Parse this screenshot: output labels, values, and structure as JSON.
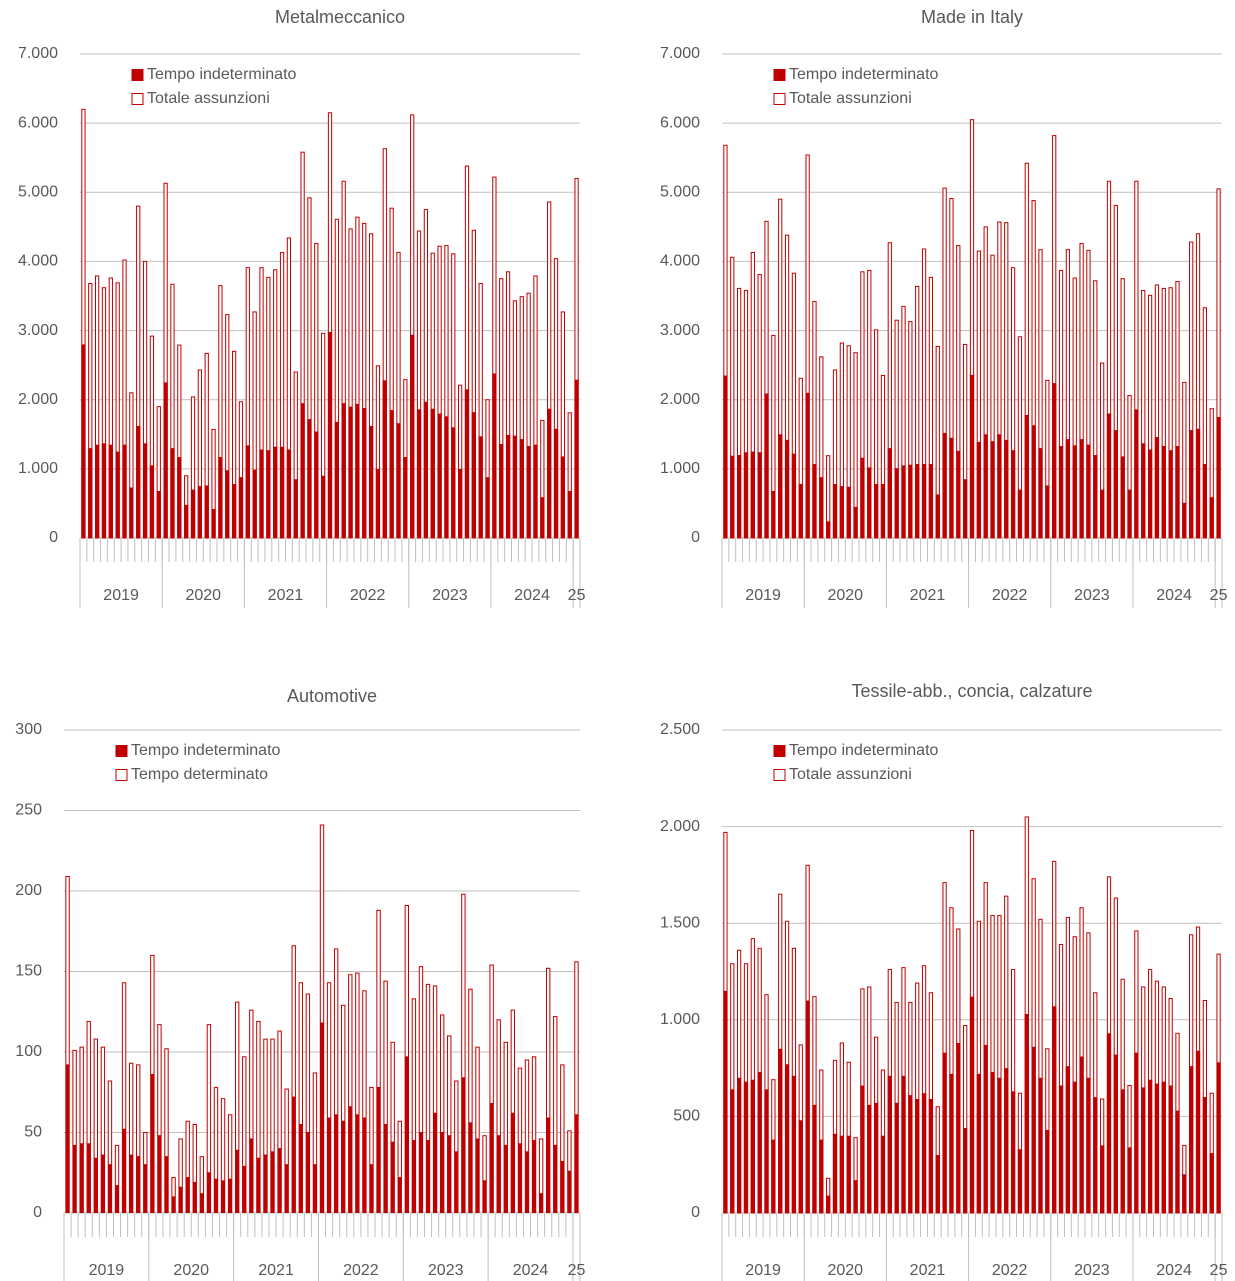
{
  "chart_data": [
    {
      "type": "bar",
      "title": "Metalmeccanico",
      "stacked": false,
      "grid": true,
      "legend": "top-left",
      "categories": [
        null,
        null,
        null,
        null,
        null,
        null,
        null,
        null,
        null,
        null,
        null,
        null,
        null,
        null,
        null,
        null,
        null,
        null,
        null,
        null,
        null,
        null,
        null,
        null,
        null,
        null,
        null,
        null,
        null,
        null,
        null,
        null,
        null,
        null,
        null,
        null,
        null,
        null,
        null,
        null,
        null,
        null,
        null,
        null,
        null,
        null,
        null,
        null,
        null,
        null,
        null,
        null,
        null,
        null,
        null,
        null,
        null,
        null,
        null,
        null,
        null,
        null,
        null,
        null,
        null,
        null,
        null,
        null,
        null,
        null,
        null,
        null,
        null
      ],
      "groups": [
        {
          "label": "2019",
          "span": 12
        },
        {
          "label": "2020",
          "span": 12
        },
        {
          "label": "2021",
          "span": 12
        },
        {
          "label": "2022",
          "span": 12
        },
        {
          "label": "2023",
          "span": 12
        },
        {
          "label": "2024",
          "span": 12
        },
        {
          "label": "25",
          "span": 1
        }
      ],
      "ylim": [
        0,
        7000
      ],
      "yticks": [
        0,
        {
          "value": 1000,
          "label": "1.000"
        },
        {
          "value": 2000,
          "label": "2.000"
        },
        {
          "value": 3000,
          "label": "3.000"
        },
        {
          "value": 4000,
          "label": "4.000"
        },
        {
          "value": 5000,
          "label": "5.000"
        },
        {
          "value": 6000,
          "label": "6.000"
        },
        {
          "value": 7000,
          "label": "7.000"
        }
      ],
      "series": [
        {
          "name": "Tempo indeterminato",
          "color": "#c00000",
          "style": "solid",
          "values": [
            2800,
            1300,
            1350,
            1370,
            1350,
            1250,
            1350,
            730,
            1620,
            1370,
            1050,
            680,
            2250,
            1300,
            1170,
            480,
            700,
            750,
            760,
            420,
            1170,
            980,
            780,
            880,
            1340,
            990,
            1280,
            1270,
            1320,
            1320,
            1280,
            850,
            1950,
            1720,
            1540,
            900,
            2980,
            1680,
            1950,
            1900,
            1940,
            1880,
            1620,
            1000,
            2280,
            1850,
            1660,
            1170,
            2940,
            1860,
            1970,
            1870,
            1800,
            1760,
            1600,
            1000,
            2150,
            1820,
            1470,
            880,
            2380,
            1360,
            1490,
            1480,
            1430,
            1330,
            1350,
            590,
            1870,
            1580,
            1180,
            680,
            2290
          ]
        },
        {
          "name": "Totale assunzioni",
          "color": "#c00000",
          "style": "outline",
          "values": [
            6200,
            3680,
            3790,
            3620,
            3760,
            3690,
            4020,
            2100,
            4800,
            4000,
            2920,
            1900,
            5130,
            3670,
            2790,
            900,
            2040,
            2430,
            2670,
            1570,
            3650,
            3230,
            2700,
            1970,
            3910,
            3270,
            3910,
            3770,
            3880,
            4130,
            4340,
            2400,
            5580,
            4920,
            4260,
            2960,
            6150,
            4610,
            5160,
            4470,
            4640,
            4550,
            4400,
            2490,
            5630,
            4770,
            4130,
            2290,
            6120,
            4440,
            4750,
            4120,
            4220,
            4230,
            4110,
            2210,
            5380,
            4450,
            3680,
            2000,
            5220,
            3750,
            3850,
            3430,
            3490,
            3540,
            3790,
            1700,
            4860,
            4040,
            3270,
            1810,
            5200
          ]
        }
      ]
    },
    {
      "type": "bar",
      "title": "Made in Italy",
      "stacked": false,
      "grid": true,
      "legend": "top-left",
      "categories": [
        null,
        null,
        null,
        null,
        null,
        null,
        null,
        null,
        null,
        null,
        null,
        null,
        null,
        null,
        null,
        null,
        null,
        null,
        null,
        null,
        null,
        null,
        null,
        null,
        null,
        null,
        null,
        null,
        null,
        null,
        null,
        null,
        null,
        null,
        null,
        null,
        null,
        null,
        null,
        null,
        null,
        null,
        null,
        null,
        null,
        null,
        null,
        null,
        null,
        null,
        null,
        null,
        null,
        null,
        null,
        null,
        null,
        null,
        null,
        null,
        null,
        null,
        null,
        null,
        null,
        null,
        null,
        null,
        null,
        null,
        null,
        null,
        null
      ],
      "groups": [
        {
          "label": "2019",
          "span": 12
        },
        {
          "label": "2020",
          "span": 12
        },
        {
          "label": "2021",
          "span": 12
        },
        {
          "label": "2022",
          "span": 12
        },
        {
          "label": "2023",
          "span": 12
        },
        {
          "label": "2024",
          "span": 12
        },
        {
          "label": "25",
          "span": 1
        }
      ],
      "ylim": [
        0,
        7000
      ],
      "yticks": [
        0,
        {
          "value": 1000,
          "label": "1.000"
        },
        {
          "value": 2000,
          "label": "2.000"
        },
        {
          "value": 3000,
          "label": "3.000"
        },
        {
          "value": 4000,
          "label": "4.000"
        },
        {
          "value": 5000,
          "label": "5.000"
        },
        {
          "value": 6000,
          "label": "6.000"
        },
        {
          "value": 7000,
          "label": "7.000"
        }
      ],
      "series": [
        {
          "name": "Tempo indeterminato",
          "color": "#c00000",
          "style": "solid",
          "values": [
            2350,
            1190,
            1200,
            1240,
            1250,
            1240,
            2090,
            680,
            1500,
            1420,
            1220,
            780,
            2100,
            1070,
            880,
            240,
            780,
            750,
            740,
            450,
            1160,
            1020,
            780,
            780,
            1300,
            1010,
            1050,
            1060,
            1070,
            1070,
            1070,
            630,
            1520,
            1450,
            1260,
            850,
            2360,
            1390,
            1500,
            1400,
            1500,
            1420,
            1270,
            700,
            1780,
            1630,
            1300,
            760,
            2240,
            1330,
            1430,
            1340,
            1430,
            1350,
            1200,
            700,
            1800,
            1560,
            1180,
            700,
            1860,
            1370,
            1280,
            1460,
            1330,
            1270,
            1330,
            510,
            1560,
            1580,
            1070,
            590,
            1750
          ]
        },
        {
          "name": "Totale assunzioni",
          "color": "#c00000",
          "style": "outline",
          "values": [
            5680,
            4060,
            3610,
            3580,
            4130,
            3810,
            4580,
            2930,
            4900,
            4380,
            3830,
            2310,
            5540,
            3420,
            2620,
            1190,
            2430,
            2820,
            2780,
            2680,
            3850,
            3870,
            3010,
            2350,
            4270,
            3150,
            3350,
            3130,
            3640,
            4180,
            3770,
            2770,
            5060,
            4910,
            4230,
            2800,
            6050,
            4150,
            4500,
            4090,
            4570,
            4560,
            3910,
            2910,
            5420,
            4880,
            4170,
            2280,
            5820,
            3870,
            4170,
            3760,
            4260,
            4160,
            3720,
            2530,
            5160,
            4810,
            3750,
            2060,
            5160,
            3580,
            3510,
            3660,
            3610,
            3620,
            3710,
            2250,
            4280,
            4400,
            3330,
            1870,
            5050
          ]
        }
      ]
    },
    {
      "type": "bar",
      "title": "Automotive",
      "stacked": true,
      "grid": true,
      "legend": "top-left",
      "categories": [
        null,
        null,
        null,
        null,
        null,
        null,
        null,
        null,
        null,
        null,
        null,
        null,
        null,
        null,
        null,
        null,
        null,
        null,
        null,
        null,
        null,
        null,
        null,
        null,
        null,
        null,
        null,
        null,
        null,
        null,
        null,
        null,
        null,
        null,
        null,
        null,
        null,
        null,
        null,
        null,
        null,
        null,
        null,
        null,
        null,
        null,
        null,
        null,
        null,
        null,
        null,
        null,
        null,
        null,
        null,
        null,
        null,
        null,
        null,
        null,
        null,
        null,
        null,
        null,
        null,
        null,
        null,
        null,
        null,
        null,
        null,
        null,
        null
      ],
      "groups": [
        {
          "label": "2019",
          "span": 12
        },
        {
          "label": "2020",
          "span": 12
        },
        {
          "label": "2021",
          "span": 12
        },
        {
          "label": "2022",
          "span": 12
        },
        {
          "label": "2023",
          "span": 12
        },
        {
          "label": "2024",
          "span": 12
        },
        {
          "label": "25",
          "span": 1
        }
      ],
      "ylim": [
        0,
        300
      ],
      "yticks": [
        0,
        50,
        100,
        150,
        200,
        250,
        300
      ],
      "series": [
        {
          "name": "Tempo indeterminato",
          "color": "#c00000",
          "style": "solid",
          "values": [
            92,
            42,
            43,
            43,
            34,
            36,
            30,
            17,
            52,
            36,
            35,
            30,
            86,
            48,
            35,
            10,
            16,
            22,
            19,
            12,
            25,
            21,
            20,
            21,
            39,
            29,
            46,
            34,
            36,
            38,
            40,
            30,
            72,
            55,
            50,
            30,
            118,
            59,
            61,
            57,
            66,
            61,
            59,
            30,
            78,
            55,
            44,
            22,
            97,
            45,
            50,
            45,
            62,
            50,
            48,
            38,
            84,
            56,
            46,
            20,
            68,
            48,
            42,
            62,
            43,
            38,
            45,
            12,
            59,
            42,
            32,
            26,
            61
          ]
        },
        {
          "name": "Tempo determinato",
          "color": "#c00000",
          "style": "outline",
          "values": [
            117,
            59,
            60,
            76,
            74,
            67,
            52,
            25,
            91,
            57,
            57,
            20,
            74,
            69,
            67,
            12,
            30,
            35,
            36,
            23,
            92,
            57,
            51,
            40,
            92,
            68,
            80,
            85,
            72,
            70,
            73,
            47,
            94,
            88,
            86,
            57,
            123,
            84,
            103,
            72,
            82,
            88,
            79,
            48,
            110,
            89,
            62,
            35,
            94,
            88,
            103,
            97,
            79,
            73,
            62,
            44,
            114,
            83,
            57,
            28,
            86,
            72,
            64,
            64,
            47,
            57,
            52,
            34,
            93,
            80,
            60,
            25,
            95
          ]
        }
      ]
    },
    {
      "type": "bar",
      "title": "Tessile-abb., concia, calzature",
      "stacked": false,
      "grid": true,
      "legend": "top-left",
      "categories": [
        null,
        null,
        null,
        null,
        null,
        null,
        null,
        null,
        null,
        null,
        null,
        null,
        null,
        null,
        null,
        null,
        null,
        null,
        null,
        null,
        null,
        null,
        null,
        null,
        null,
        null,
        null,
        null,
        null,
        null,
        null,
        null,
        null,
        null,
        null,
        null,
        null,
        null,
        null,
        null,
        null,
        null,
        null,
        null,
        null,
        null,
        null,
        null,
        null,
        null,
        null,
        null,
        null,
        null,
        null,
        null,
        null,
        null,
        null,
        null,
        null,
        null,
        null,
        null,
        null,
        null,
        null,
        null,
        null,
        null,
        null,
        null,
        null
      ],
      "groups": [
        {
          "label": "2019",
          "span": 12
        },
        {
          "label": "2020",
          "span": 12
        },
        {
          "label": "2021",
          "span": 12
        },
        {
          "label": "2022",
          "span": 12
        },
        {
          "label": "2023",
          "span": 12
        },
        {
          "label": "2024",
          "span": 12
        },
        {
          "label": "25",
          "span": 1
        }
      ],
      "ylim": [
        0,
        2500
      ],
      "yticks": [
        0,
        500,
        {
          "value": 1000,
          "label": "1.000"
        },
        {
          "value": 1500,
          "label": "1.500"
        },
        {
          "value": 2000,
          "label": "2.000"
        },
        {
          "value": 2500,
          "label": "2.500"
        }
      ],
      "series": [
        {
          "name": "Tempo indeterminato",
          "color": "#c00000",
          "style": "solid",
          "values": [
            1150,
            640,
            700,
            680,
            690,
            730,
            640,
            380,
            850,
            770,
            710,
            480,
            1100,
            560,
            380,
            90,
            410,
            400,
            400,
            170,
            660,
            560,
            570,
            400,
            710,
            570,
            710,
            610,
            590,
            620,
            590,
            300,
            830,
            720,
            880,
            440,
            1120,
            720,
            870,
            730,
            700,
            750,
            630,
            330,
            1030,
            860,
            700,
            430,
            1070,
            660,
            760,
            680,
            810,
            700,
            600,
            350,
            930,
            820,
            640,
            340,
            830,
            650,
            690,
            670,
            680,
            660,
            530,
            200,
            760,
            840,
            600,
            310,
            780
          ]
        },
        {
          "name": "Totale assunzioni",
          "color": "#c00000",
          "style": "outline",
          "values": [
            1970,
            1290,
            1360,
            1290,
            1420,
            1370,
            1130,
            690,
            1650,
            1510,
            1370,
            870,
            1800,
            1120,
            740,
            180,
            790,
            880,
            780,
            390,
            1160,
            1170,
            910,
            740,
            1260,
            1090,
            1270,
            1090,
            1190,
            1280,
            1140,
            550,
            1710,
            1580,
            1470,
            970,
            1980,
            1510,
            1710,
            1540,
            1540,
            1640,
            1260,
            620,
            2050,
            1730,
            1520,
            850,
            1820,
            1390,
            1530,
            1430,
            1580,
            1450,
            1140,
            590,
            1740,
            1630,
            1210,
            660,
            1460,
            1170,
            1260,
            1200,
            1170,
            1110,
            930,
            350,
            1440,
            1480,
            1100,
            620,
            1340
          ]
        }
      ]
    }
  ]
}
